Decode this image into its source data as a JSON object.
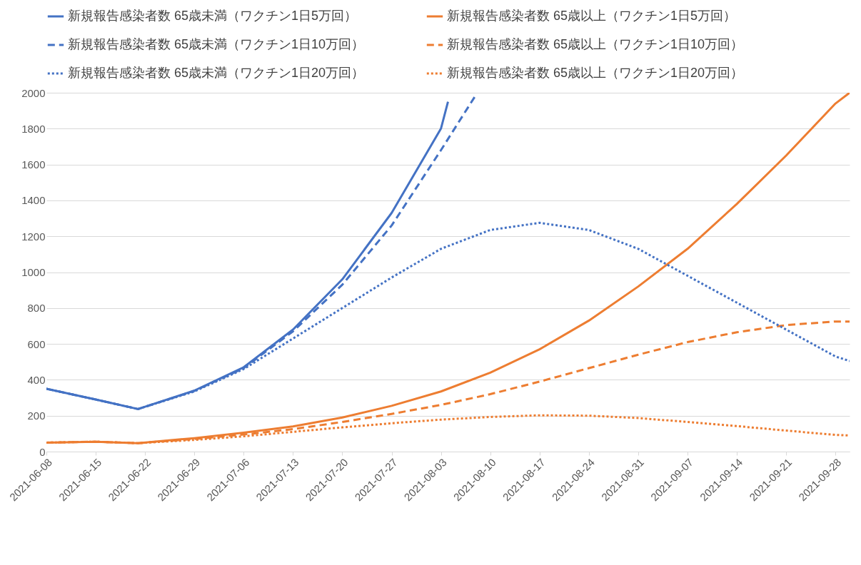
{
  "chart_data": {
    "type": "line",
    "x": [
      "2021-06-08",
      "2021-06-15",
      "2021-06-21",
      "2021-06-29",
      "2021-07-06",
      "2021-07-13",
      "2021-07-20",
      "2021-07-27",
      "2021-08-03",
      "2021-08-04",
      "2021-08-08",
      "2021-08-10",
      "2021-08-17",
      "2021-08-24",
      "2021-08-31",
      "2021-09-07",
      "2021-09-14",
      "2021-09-21",
      "2021-09-28",
      "2021-09-30"
    ],
    "series": [
      {
        "name": "新規報告感染者数 65歳未満（ワクチン1日5万回）",
        "color": "#4472c4",
        "line_style": "solid",
        "values": [
          350,
          290,
          237,
          340,
          470,
          680,
          960,
          1330,
          1800,
          1950,
          null,
          null,
          null,
          null,
          null,
          null,
          null,
          null,
          null,
          null
        ]
      },
      {
        "name": "新規報告感染者数 65歳以上（ワクチン1日5万回）",
        "color": "#ed7d31",
        "line_style": "solid",
        "values": [
          50,
          55,
          47,
          75,
          105,
          140,
          190,
          255,
          335,
          null,
          null,
          440,
          570,
          730,
          920,
          1130,
          1380,
          1650,
          1940,
          2000
        ]
      },
      {
        "name": "新規報告感染者数 65歳未満（ワクチン1日10万回）",
        "color": "#4472c4",
        "line_style": "dashed",
        "values": [
          350,
          290,
          237,
          338,
          465,
          670,
          930,
          1260,
          1680,
          null,
          1990,
          null,
          null,
          null,
          null,
          null,
          null,
          null,
          null,
          null
        ]
      },
      {
        "name": "新規報告感染者数 65歳以上（ワクチン1日10万回）",
        "color": "#ed7d31",
        "line_style": "dashed",
        "values": [
          50,
          55,
          47,
          70,
          95,
          125,
          165,
          210,
          260,
          null,
          null,
          320,
          390,
          465,
          540,
          610,
          665,
          705,
          725,
          725
        ]
      },
      {
        "name": "新規報告感染者数 65歳未満（ワクチン1日20万回）",
        "color": "#4472c4",
        "line_style": "dotted",
        "values": [
          350,
          290,
          237,
          335,
          460,
          630,
          800,
          970,
          1130,
          null,
          null,
          1235,
          1275,
          1235,
          1130,
          980,
          830,
          680,
          530,
          505
        ]
      },
      {
        "name": "新規報告感染者数 65歳以上（ワクチン1日20万回）",
        "color": "#ed7d31",
        "line_style": "dotted",
        "values": [
          50,
          55,
          47,
          65,
          85,
          110,
          135,
          158,
          178,
          null,
          null,
          193,
          202,
          200,
          187,
          165,
          142,
          117,
          93,
          90
        ]
      }
    ],
    "xlim": [
      "2021-06-08",
      "2021-09-30"
    ],
    "xticks": [
      "2021-06-08",
      "2021-06-15",
      "2021-06-22",
      "2021-06-29",
      "2021-07-06",
      "2021-07-13",
      "2021-07-20",
      "2021-07-27",
      "2021-08-03",
      "2021-08-10",
      "2021-08-17",
      "2021-08-24",
      "2021-08-31",
      "2021-09-07",
      "2021-09-14",
      "2021-09-21",
      "2021-09-28"
    ],
    "ylim": [
      0,
      2000
    ],
    "yticks": [
      0,
      200,
      400,
      600,
      800,
      1000,
      1200,
      1400,
      1600,
      1800,
      2000
    ],
    "grid": "y",
    "legend": "top",
    "marker": "none"
  }
}
